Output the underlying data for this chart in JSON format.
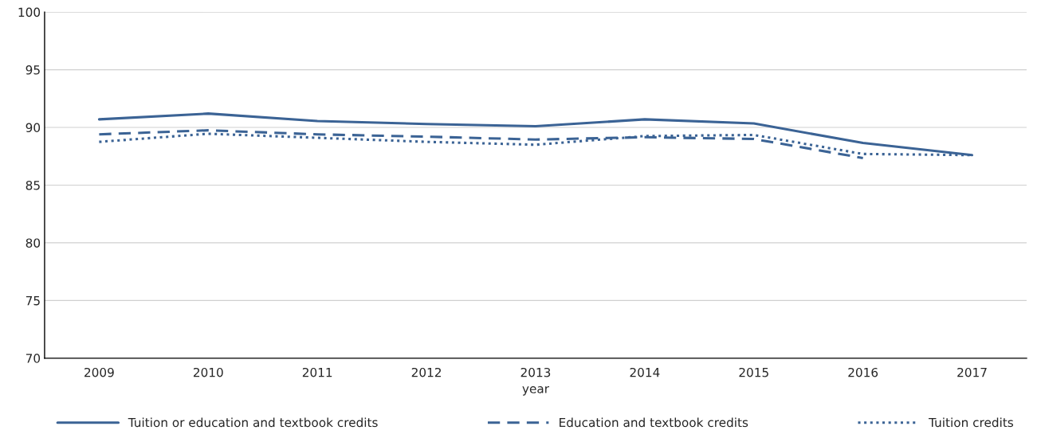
{
  "chart_data": {
    "type": "line",
    "xlabel": "year",
    "categories": [
      "2009",
      "2010",
      "2011",
      "2012",
      "2013",
      "2014",
      "2015",
      "2016",
      "2017"
    ],
    "series": [
      {
        "name": "Tuition or education and textbook credits",
        "color": "#3b6395",
        "line_style": "solid",
        "values": [
          90.7,
          91.2,
          90.55,
          90.3,
          90.1,
          90.7,
          90.35,
          88.65,
          87.6
        ]
      },
      {
        "name": "Education and textbook credits",
        "color": "#3b6395",
        "line_style": "dashed",
        "values": [
          89.4,
          89.75,
          89.4,
          89.2,
          88.95,
          89.15,
          89.0,
          87.35,
          null
        ]
      },
      {
        "name": "Tuition credits",
        "color": "#3b6395",
        "line_style": "dotted",
        "values": [
          88.75,
          89.45,
          89.1,
          88.75,
          88.5,
          89.25,
          89.35,
          87.7,
          87.6
        ]
      }
    ],
    "ylim": [
      70,
      100
    ],
    "yticks": [
      70,
      75,
      80,
      85,
      90,
      95,
      100
    ],
    "grid": "y",
    "legend": "bottom",
    "marker": "none"
  }
}
